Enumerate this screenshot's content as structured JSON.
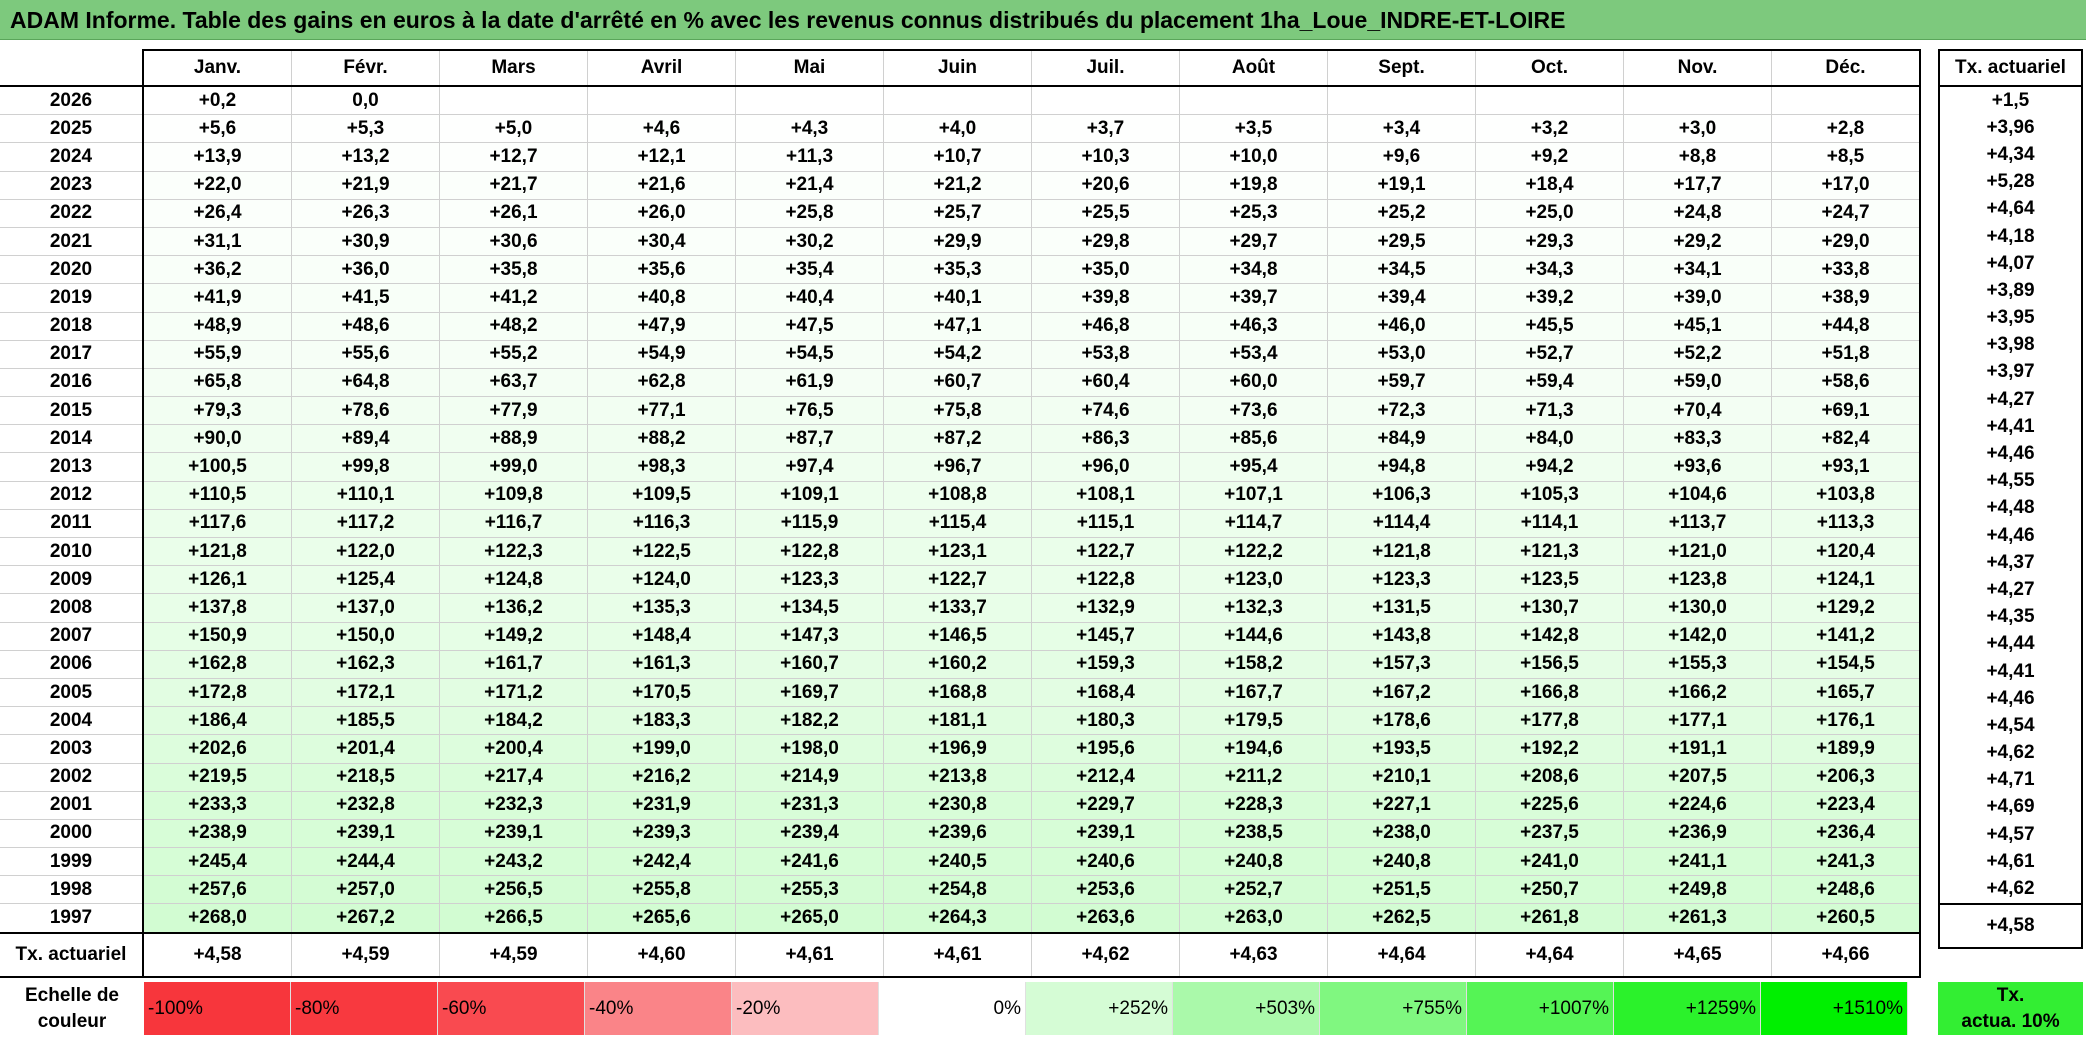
{
  "title": "ADAM Informe. Table des gains en euros à la date d'arrêté en % avec les revenus connus distribués du placement 1ha_Loue_INDRE-ET-LOIRE",
  "colors": {
    "title_bg": "#7dc97d",
    "cell_max": "#00f000"
  },
  "months": [
    "Janv.",
    "Févr.",
    "Mars",
    "Avril",
    "Mai",
    "Juin",
    "Juil.",
    "Août",
    "Sept.",
    "Oct.",
    "Nov.",
    "Déc."
  ],
  "tx_header": "Tx. actuariel",
  "rows": [
    {
      "year": "2026",
      "values": [
        "+0,2",
        "0,0",
        "",
        "",
        "",
        "",
        "",
        "",
        "",
        "",
        "",
        ""
      ],
      "tx": "+1,5"
    },
    {
      "year": "2025",
      "values": [
        "+5,6",
        "+5,3",
        "+5,0",
        "+4,6",
        "+4,3",
        "+4,0",
        "+3,7",
        "+3,5",
        "+3,4",
        "+3,2",
        "+3,0",
        "+2,8"
      ],
      "tx": "+3,96"
    },
    {
      "year": "2024",
      "values": [
        "+13,9",
        "+13,2",
        "+12,7",
        "+12,1",
        "+11,3",
        "+10,7",
        "+10,3",
        "+10,0",
        "+9,6",
        "+9,2",
        "+8,8",
        "+8,5"
      ],
      "tx": "+4,34"
    },
    {
      "year": "2023",
      "values": [
        "+22,0",
        "+21,9",
        "+21,7",
        "+21,6",
        "+21,4",
        "+21,2",
        "+20,6",
        "+19,8",
        "+19,1",
        "+18,4",
        "+17,7",
        "+17,0"
      ],
      "tx": "+5,28"
    },
    {
      "year": "2022",
      "values": [
        "+26,4",
        "+26,3",
        "+26,1",
        "+26,0",
        "+25,8",
        "+25,7",
        "+25,5",
        "+25,3",
        "+25,2",
        "+25,0",
        "+24,8",
        "+24,7"
      ],
      "tx": "+4,64"
    },
    {
      "year": "2021",
      "values": [
        "+31,1",
        "+30,9",
        "+30,6",
        "+30,4",
        "+30,2",
        "+29,9",
        "+29,8",
        "+29,7",
        "+29,5",
        "+29,3",
        "+29,2",
        "+29,0"
      ],
      "tx": "+4,18"
    },
    {
      "year": "2020",
      "values": [
        "+36,2",
        "+36,0",
        "+35,8",
        "+35,6",
        "+35,4",
        "+35,3",
        "+35,0",
        "+34,8",
        "+34,5",
        "+34,3",
        "+34,1",
        "+33,8"
      ],
      "tx": "+4,07"
    },
    {
      "year": "2019",
      "values": [
        "+41,9",
        "+41,5",
        "+41,2",
        "+40,8",
        "+40,4",
        "+40,1",
        "+39,8",
        "+39,7",
        "+39,4",
        "+39,2",
        "+39,0",
        "+38,9"
      ],
      "tx": "+3,89"
    },
    {
      "year": "2018",
      "values": [
        "+48,9",
        "+48,6",
        "+48,2",
        "+47,9",
        "+47,5",
        "+47,1",
        "+46,8",
        "+46,3",
        "+46,0",
        "+45,5",
        "+45,1",
        "+44,8"
      ],
      "tx": "+3,95"
    },
    {
      "year": "2017",
      "values": [
        "+55,9",
        "+55,6",
        "+55,2",
        "+54,9",
        "+54,5",
        "+54,2",
        "+53,8",
        "+53,4",
        "+53,0",
        "+52,7",
        "+52,2",
        "+51,8"
      ],
      "tx": "+3,98"
    },
    {
      "year": "2016",
      "values": [
        "+65,8",
        "+64,8",
        "+63,7",
        "+62,8",
        "+61,9",
        "+60,7",
        "+60,4",
        "+60,0",
        "+59,7",
        "+59,4",
        "+59,0",
        "+58,6"
      ],
      "tx": "+3,97"
    },
    {
      "year": "2015",
      "values": [
        "+79,3",
        "+78,6",
        "+77,9",
        "+77,1",
        "+76,5",
        "+75,8",
        "+74,6",
        "+73,6",
        "+72,3",
        "+71,3",
        "+70,4",
        "+69,1"
      ],
      "tx": "+4,27"
    },
    {
      "year": "2014",
      "values": [
        "+90,0",
        "+89,4",
        "+88,9",
        "+88,2",
        "+87,7",
        "+87,2",
        "+86,3",
        "+85,6",
        "+84,9",
        "+84,0",
        "+83,3",
        "+82,4"
      ],
      "tx": "+4,41"
    },
    {
      "year": "2013",
      "values": [
        "+100,5",
        "+99,8",
        "+99,0",
        "+98,3",
        "+97,4",
        "+96,7",
        "+96,0",
        "+95,4",
        "+94,8",
        "+94,2",
        "+93,6",
        "+93,1"
      ],
      "tx": "+4,46"
    },
    {
      "year": "2012",
      "values": [
        "+110,5",
        "+110,1",
        "+109,8",
        "+109,5",
        "+109,1",
        "+108,8",
        "+108,1",
        "+107,1",
        "+106,3",
        "+105,3",
        "+104,6",
        "+103,8"
      ],
      "tx": "+4,55"
    },
    {
      "year": "2011",
      "values": [
        "+117,6",
        "+117,2",
        "+116,7",
        "+116,3",
        "+115,9",
        "+115,4",
        "+115,1",
        "+114,7",
        "+114,4",
        "+114,1",
        "+113,7",
        "+113,3"
      ],
      "tx": "+4,48"
    },
    {
      "year": "2010",
      "values": [
        "+121,8",
        "+122,0",
        "+122,3",
        "+122,5",
        "+122,8",
        "+123,1",
        "+122,7",
        "+122,2",
        "+121,8",
        "+121,3",
        "+121,0",
        "+120,4"
      ],
      "tx": "+4,46"
    },
    {
      "year": "2009",
      "values": [
        "+126,1",
        "+125,4",
        "+124,8",
        "+124,0",
        "+123,3",
        "+122,7",
        "+122,8",
        "+123,0",
        "+123,3",
        "+123,5",
        "+123,8",
        "+124,1"
      ],
      "tx": "+4,37"
    },
    {
      "year": "2008",
      "values": [
        "+137,8",
        "+137,0",
        "+136,2",
        "+135,3",
        "+134,5",
        "+133,7",
        "+132,9",
        "+132,3",
        "+131,5",
        "+130,7",
        "+130,0",
        "+129,2"
      ],
      "tx": "+4,27"
    },
    {
      "year": "2007",
      "values": [
        "+150,9",
        "+150,0",
        "+149,2",
        "+148,4",
        "+147,3",
        "+146,5",
        "+145,7",
        "+144,6",
        "+143,8",
        "+142,8",
        "+142,0",
        "+141,2"
      ],
      "tx": "+4,35"
    },
    {
      "year": "2006",
      "values": [
        "+162,8",
        "+162,3",
        "+161,7",
        "+161,3",
        "+160,7",
        "+160,2",
        "+159,3",
        "+158,2",
        "+157,3",
        "+156,5",
        "+155,3",
        "+154,5"
      ],
      "tx": "+4,44"
    },
    {
      "year": "2005",
      "values": [
        "+172,8",
        "+172,1",
        "+171,2",
        "+170,5",
        "+169,7",
        "+168,8",
        "+168,4",
        "+167,7",
        "+167,2",
        "+166,8",
        "+166,2",
        "+165,7"
      ],
      "tx": "+4,41"
    },
    {
      "year": "2004",
      "values": [
        "+186,4",
        "+185,5",
        "+184,2",
        "+183,3",
        "+182,2",
        "+181,1",
        "+180,3",
        "+179,5",
        "+178,6",
        "+177,8",
        "+177,1",
        "+176,1"
      ],
      "tx": "+4,46"
    },
    {
      "year": "2003",
      "values": [
        "+202,6",
        "+201,4",
        "+200,4",
        "+199,0",
        "+198,0",
        "+196,9",
        "+195,6",
        "+194,6",
        "+193,5",
        "+192,2",
        "+191,1",
        "+189,9"
      ],
      "tx": "+4,54"
    },
    {
      "year": "2002",
      "values": [
        "+219,5",
        "+218,5",
        "+217,4",
        "+216,2",
        "+214,9",
        "+213,8",
        "+212,4",
        "+211,2",
        "+210,1",
        "+208,6",
        "+207,5",
        "+206,3"
      ],
      "tx": "+4,62"
    },
    {
      "year": "2001",
      "values": [
        "+233,3",
        "+232,8",
        "+232,3",
        "+231,9",
        "+231,3",
        "+230,8",
        "+229,7",
        "+228,3",
        "+227,1",
        "+225,6",
        "+224,6",
        "+223,4"
      ],
      "tx": "+4,71"
    },
    {
      "year": "2000",
      "values": [
        "+238,9",
        "+239,1",
        "+239,1",
        "+239,3",
        "+239,4",
        "+239,6",
        "+239,1",
        "+238,5",
        "+238,0",
        "+237,5",
        "+236,9",
        "+236,4"
      ],
      "tx": "+4,69"
    },
    {
      "year": "1999",
      "values": [
        "+245,4",
        "+244,4",
        "+243,2",
        "+242,4",
        "+241,6",
        "+240,5",
        "+240,6",
        "+240,8",
        "+240,8",
        "+241,0",
        "+241,1",
        "+241,3"
      ],
      "tx": "+4,57"
    },
    {
      "year": "1998",
      "values": [
        "+257,6",
        "+257,0",
        "+256,5",
        "+255,8",
        "+255,3",
        "+254,8",
        "+253,6",
        "+252,7",
        "+251,5",
        "+250,7",
        "+249,8",
        "+248,6"
      ],
      "tx": "+4,61"
    },
    {
      "year": "1997",
      "values": [
        "+268,0",
        "+267,2",
        "+266,5",
        "+265,6",
        "+265,0",
        "+264,3",
        "+263,6",
        "+263,0",
        "+262,5",
        "+261,8",
        "+261,3",
        "+260,5"
      ],
      "tx": "+4,62"
    }
  ],
  "footer": {
    "label": "Tx. actuariel",
    "values": [
      "+4,58",
      "+4,59",
      "+4,59",
      "+4,60",
      "+4,61",
      "+4,61",
      "+4,62",
      "+4,63",
      "+4,64",
      "+4,64",
      "+4,65",
      "+4,66"
    ],
    "tx": "+4,58"
  },
  "legend": {
    "label_line1": "Echelle de",
    "label_line2": "couleur",
    "items": [
      {
        "label": "-100%",
        "color": "#f7363c",
        "align": "left"
      },
      {
        "label": "-80%",
        "color": "#f8393f",
        "align": "left"
      },
      {
        "label": "-60%",
        "color": "#f94a50",
        "align": "left"
      },
      {
        "label": "-40%",
        "color": "#fa8488",
        "align": "left"
      },
      {
        "label": "-20%",
        "color": "#fcbdbf",
        "align": "left"
      },
      {
        "label": "0%",
        "color": "#ffffff",
        "align": "right"
      },
      {
        "label": "+252%",
        "color": "#d5fcd5",
        "align": "right"
      },
      {
        "label": "+503%",
        "color": "#aaf9aa",
        "align": "right"
      },
      {
        "label": "+755%",
        "color": "#80f780",
        "align": "right"
      },
      {
        "label": "+1007%",
        "color": "#55f455",
        "align": "right"
      },
      {
        "label": "+1259%",
        "color": "#2bf22b",
        "align": "right"
      },
      {
        "label": "+1510%",
        "color": "#00f000",
        "align": "right"
      }
    ],
    "tx_line1": "Tx.",
    "tx_line2": "actua. 10%",
    "tx_color": "#33ee33"
  }
}
